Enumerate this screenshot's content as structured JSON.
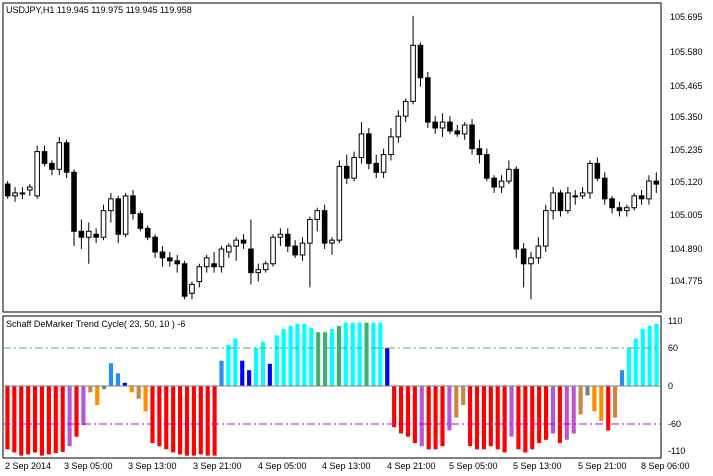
{
  "window": {
    "symbol_line": "USDJPY,H1  119.945 119.975 119.945 119.958"
  },
  "price_axis": {
    "labels": [
      "105.695",
      "105.580",
      "105.465",
      "105.350",
      "105.235",
      "105.120",
      "105.005",
      "104.890",
      "104.775"
    ]
  },
  "indicator": {
    "title": "Schaff DeMarker Trend Cycle( 23, 50, 10 ) -6",
    "levels": [
      "110",
      "60",
      "0",
      "-60",
      "-110"
    ]
  },
  "time_axis": {
    "labels": [
      "2 Sep 2014",
      "3 Sep 05:00",
      "3 Sep 13:00",
      "3 Sep 21:00",
      "4 Sep 05:00",
      "4 Sep 13:00",
      "4 Sep 21:00",
      "5 Sep 05:00",
      "5 Sep 13:00",
      "5 Sep 21:00",
      "8 Sep 06:00"
    ]
  },
  "colors": {
    "frame": "#000000",
    "level_green": "#3cb371",
    "level_magenta": "#c000c0",
    "red": "#ff0000",
    "orange": "#ff8c00",
    "violet": "#ba55d3",
    "peru": "#cd853f",
    "dodgerblue": "#1e90ff",
    "blue": "#0000ff",
    "aqua": "#00ffff",
    "seagreen": "#3cb371",
    "gray": "#808080"
  },
  "chart_data": [
    {
      "type": "candlestick",
      "title": "USDJPY,H1",
      "ylim": [
        104.7,
        105.74
      ],
      "candles": [
        [
          105.13,
          105.14,
          105.08,
          105.09
        ],
        [
          105.09,
          105.12,
          105.07,
          105.1
        ],
        [
          105.1,
          105.12,
          105.08,
          105.1
        ],
        [
          105.11,
          105.13,
          105.09,
          105.12
        ],
        [
          105.09,
          105.26,
          105.08,
          105.24
        ],
        [
          105.24,
          105.26,
          105.19,
          105.2
        ],
        [
          105.2,
          105.21,
          105.16,
          105.18
        ],
        [
          105.18,
          105.29,
          105.16,
          105.27
        ],
        [
          105.27,
          105.28,
          105.15,
          105.17
        ],
        [
          105.17,
          105.18,
          104.92,
          104.97
        ],
        [
          104.97,
          105.01,
          104.91,
          104.95
        ],
        [
          104.95,
          105.0,
          104.86,
          104.97
        ],
        [
          104.96,
          104.98,
          104.93,
          104.95
        ],
        [
          104.95,
          105.06,
          104.94,
          105.04
        ],
        [
          105.04,
          105.1,
          105.0,
          105.08
        ],
        [
          105.08,
          105.09,
          104.93,
          104.96
        ],
        [
          104.96,
          105.1,
          104.95,
          105.09
        ],
        [
          105.09,
          105.11,
          105.01,
          105.03
        ],
        [
          105.03,
          105.04,
          104.97,
          104.98
        ],
        [
          104.98,
          104.99,
          104.94,
          104.95
        ],
        [
          104.95,
          104.96,
          104.88,
          104.9
        ],
        [
          104.9,
          104.92,
          104.85,
          104.88
        ],
        [
          104.88,
          104.9,
          104.85,
          104.87
        ],
        [
          104.87,
          104.89,
          104.83,
          104.86
        ],
        [
          104.86,
          104.87,
          104.74,
          104.75
        ],
        [
          104.76,
          104.8,
          104.74,
          104.79
        ],
        [
          104.8,
          104.86,
          104.78,
          104.85
        ],
        [
          104.85,
          104.89,
          104.83,
          104.88
        ],
        [
          104.86,
          104.9,
          104.83,
          104.85
        ],
        [
          104.85,
          104.92,
          104.83,
          104.91
        ],
        [
          104.9,
          104.93,
          104.88,
          104.92
        ],
        [
          104.92,
          104.95,
          104.87,
          104.94
        ],
        [
          104.94,
          104.96,
          104.91,
          104.93
        ],
        [
          104.91,
          105.01,
          104.79,
          104.83
        ],
        [
          104.83,
          104.86,
          104.8,
          104.84
        ],
        [
          104.84,
          104.87,
          104.83,
          104.86
        ],
        [
          104.86,
          104.96,
          104.85,
          104.95
        ],
        [
          104.95,
          104.98,
          104.92,
          104.96
        ],
        [
          104.96,
          104.98,
          104.9,
          104.92
        ],
        [
          104.92,
          104.94,
          104.88,
          104.89
        ],
        [
          104.89,
          104.95,
          104.87,
          104.93
        ],
        [
          104.93,
          105.02,
          104.78,
          105.01
        ],
        [
          105.01,
          105.05,
          104.97,
          105.04
        ],
        [
          105.04,
          105.06,
          104.91,
          104.93
        ],
        [
          104.93,
          104.95,
          104.89,
          104.94
        ],
        [
          104.94,
          105.21,
          104.93,
          105.19
        ],
        [
          105.19,
          105.23,
          105.13,
          105.15
        ],
        [
          105.15,
          105.24,
          105.14,
          105.22
        ],
        [
          105.22,
          105.34,
          105.2,
          105.3
        ],
        [
          105.3,
          105.32,
          105.18,
          105.2
        ],
        [
          105.2,
          105.23,
          105.15,
          105.17
        ],
        [
          105.17,
          105.25,
          105.15,
          105.23
        ],
        [
          105.23,
          105.32,
          105.21,
          105.29
        ],
        [
          105.29,
          105.38,
          105.27,
          105.36
        ],
        [
          105.36,
          105.42,
          105.34,
          105.41
        ],
        [
          105.41,
          105.7,
          105.4,
          105.6
        ],
        [
          105.6,
          105.61,
          105.46,
          105.49
        ],
        [
          105.49,
          105.51,
          105.32,
          105.34
        ],
        [
          105.34,
          105.36,
          105.3,
          105.32
        ],
        [
          105.32,
          105.37,
          105.29,
          105.34
        ],
        [
          105.34,
          105.36,
          105.3,
          105.31
        ],
        [
          105.31,
          105.33,
          105.29,
          105.3
        ],
        [
          105.3,
          105.34,
          105.28,
          105.33
        ],
        [
          105.33,
          105.35,
          105.23,
          105.25
        ],
        [
          105.25,
          105.28,
          105.2,
          105.23
        ],
        [
          105.23,
          105.25,
          105.14,
          105.15
        ],
        [
          105.15,
          105.16,
          105.1,
          105.12
        ],
        [
          105.12,
          105.16,
          105.1,
          105.14
        ],
        [
          105.14,
          105.21,
          105.13,
          105.18
        ],
        [
          105.18,
          105.19,
          104.88,
          104.91
        ],
        [
          104.91,
          104.93,
          104.78,
          104.86
        ],
        [
          104.86,
          104.9,
          104.74,
          104.88
        ],
        [
          104.88,
          104.95,
          104.86,
          104.92
        ],
        [
          104.92,
          105.06,
          104.9,
          105.04
        ],
        [
          105.04,
          105.12,
          105.01,
          105.1
        ],
        [
          105.1,
          105.11,
          105.02,
          105.04
        ],
        [
          105.04,
          105.12,
          105.03,
          105.1
        ],
        [
          105.09,
          105.11,
          105.06,
          105.09
        ],
        [
          105.09,
          105.12,
          105.08,
          105.1
        ],
        [
          105.1,
          105.21,
          105.08,
          105.2
        ],
        [
          105.2,
          105.22,
          105.14,
          105.15
        ],
        [
          105.15,
          105.17,
          105.06,
          105.08
        ],
        [
          105.08,
          105.09,
          105.03,
          105.05
        ],
        [
          105.05,
          105.07,
          105.02,
          105.04
        ],
        [
          105.04,
          105.06,
          105.02,
          105.05
        ],
        [
          105.05,
          105.1,
          105.04,
          105.09
        ],
        [
          105.09,
          105.11,
          105.06,
          105.08
        ],
        [
          105.08,
          105.16,
          105.06,
          105.14
        ],
        [
          105.14,
          105.17,
          105.1,
          105.13
        ]
      ]
    },
    {
      "type": "bar",
      "title": "Schaff DeMarker Trend Cycle( 23, 50, 10 ) -6",
      "ylim": [
        -130,
        115
      ],
      "levels": [
        110,
        60,
        0,
        -60,
        -110
      ],
      "values": [
        -100,
        -100,
        -100,
        -100,
        -100,
        -100,
        -100,
        -100,
        -100,
        -100,
        -100,
        -100,
        -100,
        -100,
        -100,
        -100,
        -100,
        -100,
        -100,
        -100,
        -105,
        -110,
        -110,
        -110,
        -110,
        -110,
        -110,
        -110,
        -110,
        -110,
        -110,
        -110,
        -110,
        -110,
        -110,
        -110,
        -110,
        -110,
        -110,
        -110,
        -110,
        -110,
        -110,
        -110,
        -110,
        -110,
        -110,
        -110,
        -110,
        -110,
        -110,
        -110,
        -110,
        -110,
        -110,
        -110,
        -110,
        -110,
        -110,
        -110,
        -110,
        -110,
        -100,
        -100,
        -100,
        -100,
        -100,
        -100,
        -100,
        -100,
        -100,
        -100,
        -100,
        -100,
        -100,
        -100,
        -100,
        -100,
        -100,
        -100,
        -40,
        -40,
        -40,
        -40,
        -40,
        -40,
        -40,
        -40,
        -40,
        -40,
        -40,
        -40,
        -40,
        -40,
        -40,
        -40,
        -40,
        -40,
        -40,
        -40,
        -45,
        -45,
        -45,
        -45,
        -45,
        -45,
        -45,
        -45,
        -45,
        -45,
        -45,
        -45,
        -45,
        -45,
        -45,
        -45,
        -45,
        -45,
        -45,
        -45,
        -90,
        -90,
        -90,
        -90,
        -90,
        -90,
        -90,
        -90,
        -90,
        -90,
        -90,
        -90,
        -90,
        -90,
        -90,
        -90,
        -90,
        -90,
        -90,
        -90
      ],
      "bars": [
        [
          -100,
          "red"
        ],
        [
          -105,
          "red"
        ],
        [
          -110,
          "red"
        ],
        [
          -108,
          "red"
        ],
        [
          -105,
          "red"
        ],
        [
          -110,
          "red"
        ],
        [
          -108,
          "red"
        ],
        [
          -106,
          "red"
        ],
        [
          -104,
          "red"
        ],
        [
          -95,
          "violet"
        ],
        [
          -80,
          "red"
        ],
        [
          -62,
          "violet"
        ],
        [
          -10,
          "peru"
        ],
        [
          -30,
          "orange"
        ],
        [
          -5,
          "gray"
        ],
        [
          36,
          "dodgerblue"
        ],
        [
          20,
          "dodgerblue"
        ],
        [
          5,
          "blue"
        ],
        [
          -10,
          "orange"
        ],
        [
          -20,
          "peru"
        ],
        [
          -40,
          "orange"
        ],
        [
          -90,
          "red"
        ],
        [
          -95,
          "red"
        ],
        [
          -100,
          "red"
        ],
        [
          -105,
          "red"
        ],
        [
          -108,
          "red"
        ],
        [
          -110,
          "red"
        ],
        [
          -110,
          "red"
        ],
        [
          -108,
          "red"
        ],
        [
          -110,
          "red"
        ],
        [
          -110,
          "red"
        ],
        [
          40,
          "dodgerblue"
        ],
        [
          65,
          "aqua"
        ],
        [
          75,
          "aqua"
        ],
        [
          40,
          "blue"
        ],
        [
          25,
          "blue"
        ],
        [
          60,
          "aqua"
        ],
        [
          70,
          "aqua"
        ],
        [
          35,
          "blue"
        ],
        [
          80,
          "aqua"
        ],
        [
          90,
          "aqua"
        ],
        [
          95,
          "aqua"
        ],
        [
          98,
          "aqua"
        ],
        [
          98,
          "aqua"
        ],
        [
          92,
          "aqua"
        ],
        [
          85,
          "seagreen"
        ],
        [
          85,
          "seagreen"
        ],
        [
          90,
          "aqua"
        ],
        [
          95,
          "seagreen"
        ],
        [
          100,
          "aqua"
        ],
        [
          100,
          "aqua"
        ],
        [
          100,
          "aqua"
        ],
        [
          100,
          "seagreen"
        ],
        [
          100,
          "aqua"
        ],
        [
          100,
          "aqua"
        ],
        [
          60,
          "blue"
        ],
        [
          -65,
          "red"
        ],
        [
          -75,
          "red"
        ],
        [
          -80,
          "red"
        ],
        [
          -90,
          "red"
        ],
        [
          -95,
          "violet"
        ],
        [
          -100,
          "red"
        ],
        [
          -100,
          "red"
        ],
        [
          -95,
          "red"
        ],
        [
          -70,
          "violet"
        ],
        [
          -50,
          "peru"
        ],
        [
          -30,
          "peru"
        ],
        [
          -95,
          "red"
        ],
        [
          -100,
          "red"
        ],
        [
          -100,
          "red"
        ],
        [
          -95,
          "red"
        ],
        [
          -100,
          "red"
        ],
        [
          -105,
          "red"
        ],
        [
          -80,
          "violet"
        ],
        [
          -100,
          "red"
        ],
        [
          -105,
          "red"
        ],
        [
          -100,
          "red"
        ],
        [
          -90,
          "red"
        ],
        [
          -85,
          "red"
        ],
        [
          -75,
          "violet"
        ],
        [
          -90,
          "red"
        ],
        [
          -85,
          "violet"
        ],
        [
          -75,
          "violet"
        ],
        [
          -45,
          "peru"
        ],
        [
          -15,
          "gray"
        ],
        [
          -40,
          "orange"
        ],
        [
          -55,
          "orange"
        ],
        [
          -70,
          "red"
        ],
        [
          -50,
          "peru"
        ],
        [
          25,
          "dodgerblue"
        ],
        [
          60,
          "aqua"
        ],
        [
          75,
          "aqua"
        ],
        [
          90,
          "aqua"
        ],
        [
          95,
          "aqua"
        ],
        [
          98,
          "aqua"
        ]
      ]
    }
  ]
}
